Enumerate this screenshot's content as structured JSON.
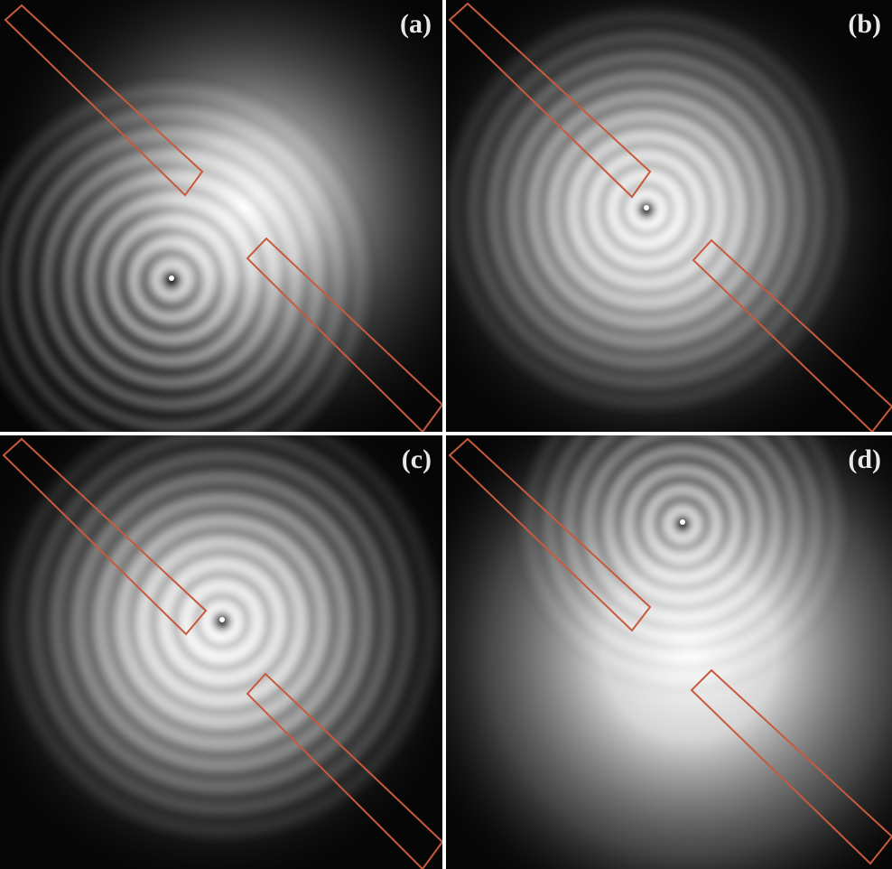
{
  "figure": {
    "panels": [
      {
        "id": "a",
        "label": "(a)"
      },
      {
        "id": "b",
        "label": "(b)"
      },
      {
        "id": "c",
        "label": "(c)"
      },
      {
        "id": "d",
        "label": "(d)"
      }
    ],
    "colors": {
      "background": "#060606",
      "ring_light": "#ffffff",
      "ring_dark": "#0c0c0c",
      "beamstop_outline": "#c85a3c",
      "divider": "#ffffff"
    }
  }
}
